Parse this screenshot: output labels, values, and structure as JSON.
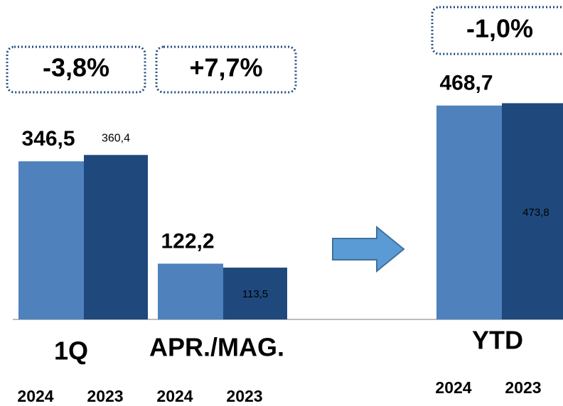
{
  "chart_data": {
    "type": "bar",
    "categories": [
      "1Q",
      "APR./MAG.",
      "YTD"
    ],
    "series": [
      {
        "name": "2024",
        "color": "#4f81bd",
        "values": [
          346.5,
          122.2,
          468.7
        ],
        "value_labels": [
          "346,5",
          "122,2",
          "468,7"
        ]
      },
      {
        "name": "2023",
        "color": "#1f497d",
        "values": [
          360.4,
          113.5,
          473.8
        ],
        "value_labels": [
          "360,4",
          "113,5",
          "473,8"
        ]
      }
    ],
    "annotations": [
      "-3,8%",
      "+7,7%",
      "-1,0%"
    ],
    "ylim": [
      0,
      700
    ]
  }
}
